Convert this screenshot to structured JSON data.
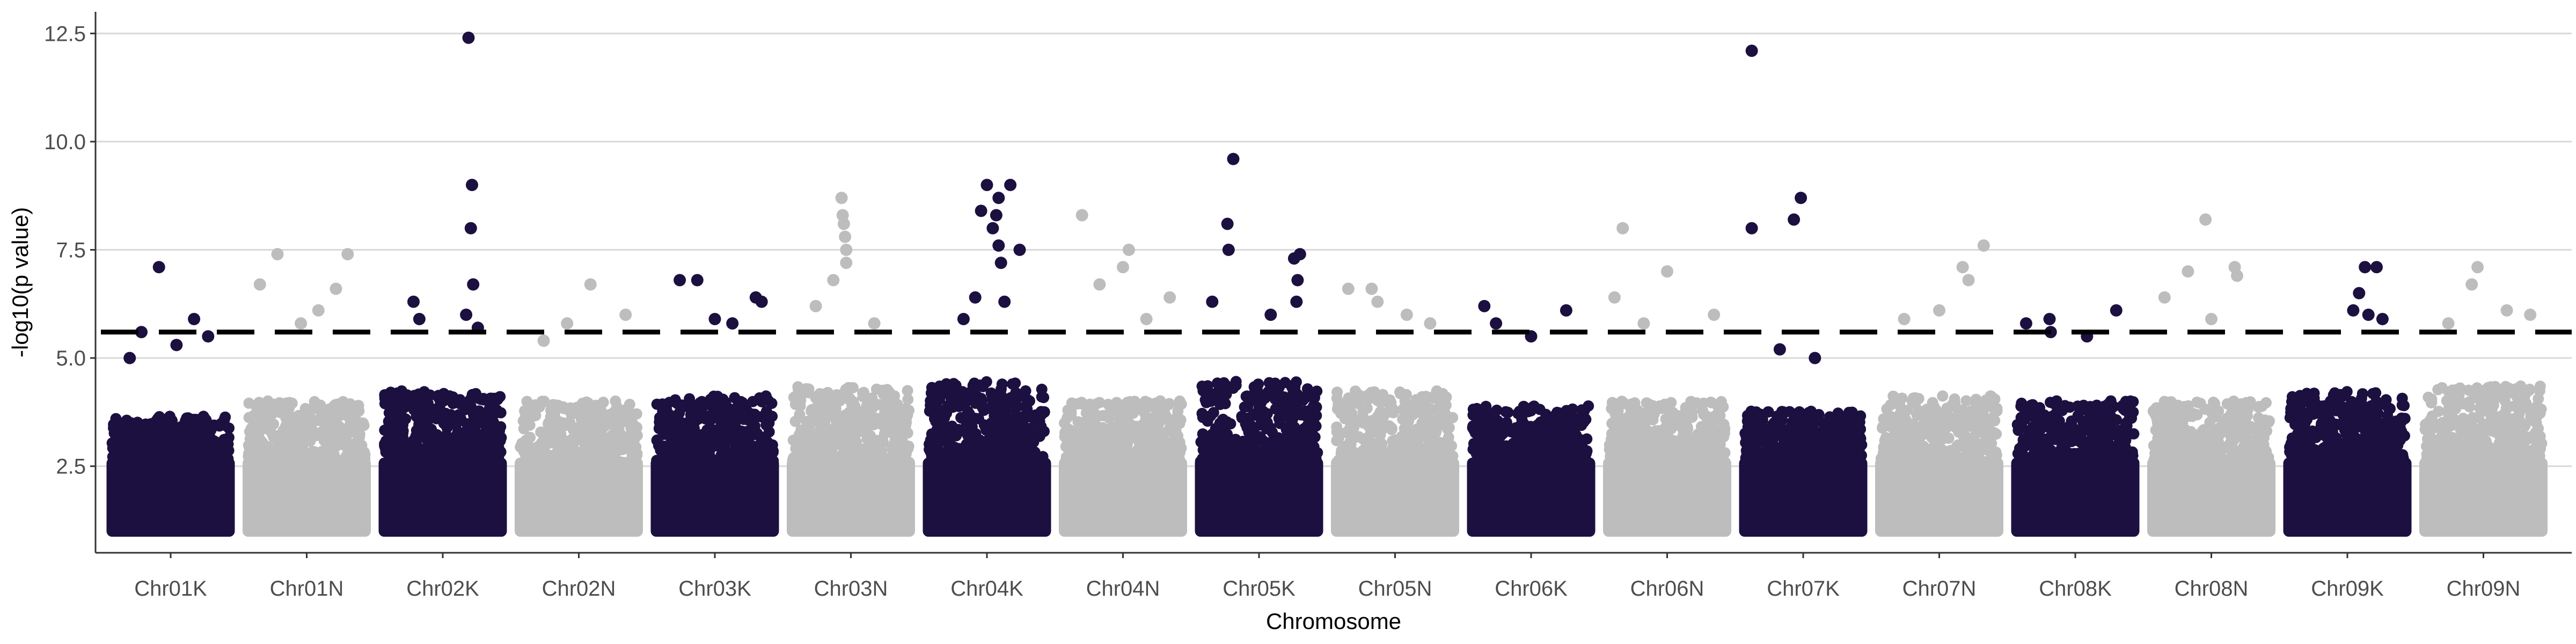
{
  "chart_data": {
    "type": "scatter",
    "subtype": "manhattan",
    "title": "",
    "xlabel": "Chromosome",
    "ylabel": "-log10(p value)",
    "ylim": [
      0.5,
      13.0
    ],
    "yticks": [
      2.5,
      5.0,
      7.5,
      10.0,
      12.5
    ],
    "grid": {
      "y": true,
      "x": false
    },
    "legend": "none",
    "threshold": 5.6,
    "colors": {
      "odd": "#1c1040",
      "even": "#bdbdbd",
      "grid": "#d9d9d9",
      "axis": "#333333",
      "threshold": "#000000"
    },
    "categories": [
      "Chr01K",
      "Chr01N",
      "Chr02K",
      "Chr02N",
      "Chr03K",
      "Chr03N",
      "Chr04K",
      "Chr04N",
      "Chr05K",
      "Chr05N",
      "Chr06K",
      "Chr06N",
      "Chr07K",
      "Chr07N",
      "Chr08K",
      "Chr08N",
      "Chr09K",
      "Chr09N"
    ],
    "series": [
      {
        "chromosome": "Chr01K",
        "base_top": 3.5,
        "points": [
          [
            0.4,
            7.1
          ],
          [
            0.25,
            5.6
          ],
          [
            0.7,
            5.9
          ],
          [
            0.55,
            5.3
          ],
          [
            0.82,
            5.5
          ],
          [
            0.15,
            5.0
          ]
        ]
      },
      {
        "chromosome": "Chr01N",
        "base_top": 3.8,
        "points": [
          [
            0.25,
            7.4
          ],
          [
            0.85,
            7.4
          ],
          [
            0.1,
            6.7
          ],
          [
            0.6,
            6.1
          ],
          [
            0.45,
            5.8
          ],
          [
            0.75,
            6.6
          ]
        ]
      },
      {
        "chromosome": "Chr02K",
        "base_top": 4.0,
        "points": [
          [
            0.72,
            12.4
          ],
          [
            0.75,
            9.0
          ],
          [
            0.74,
            8.0
          ],
          [
            0.76,
            6.7
          ],
          [
            0.7,
            6.0
          ],
          [
            0.25,
            6.3
          ],
          [
            0.8,
            5.7
          ],
          [
            0.3,
            5.9
          ]
        ]
      },
      {
        "chromosome": "Chr02N",
        "base_top": 3.8,
        "points": [
          [
            0.6,
            6.7
          ],
          [
            0.9,
            6.0
          ],
          [
            0.2,
            5.4
          ],
          [
            0.4,
            5.8
          ]
        ]
      },
      {
        "chromosome": "Chr03K",
        "base_top": 3.9,
        "points": [
          [
            0.2,
            6.8
          ],
          [
            0.35,
            6.8
          ],
          [
            0.85,
            6.4
          ],
          [
            0.9,
            6.3
          ],
          [
            0.5,
            5.9
          ],
          [
            0.65,
            5.8
          ]
        ]
      },
      {
        "chromosome": "Chr03N",
        "base_top": 4.1,
        "points": [
          [
            0.42,
            8.7
          ],
          [
            0.43,
            8.3
          ],
          [
            0.44,
            8.1
          ],
          [
            0.45,
            7.8
          ],
          [
            0.46,
            7.5
          ],
          [
            0.46,
            7.2
          ],
          [
            0.35,
            6.8
          ],
          [
            0.2,
            6.2
          ],
          [
            0.7,
            5.8
          ]
        ]
      },
      {
        "chromosome": "Chr04K",
        "base_top": 4.2,
        "points": [
          [
            0.5,
            9.0
          ],
          [
            0.7,
            9.0
          ],
          [
            0.6,
            8.7
          ],
          [
            0.45,
            8.4
          ],
          [
            0.58,
            8.3
          ],
          [
            0.55,
            8.0
          ],
          [
            0.6,
            7.6
          ],
          [
            0.78,
            7.5
          ],
          [
            0.62,
            7.2
          ],
          [
            0.4,
            6.4
          ],
          [
            0.65,
            6.3
          ],
          [
            0.3,
            5.9
          ]
        ]
      },
      {
        "chromosome": "Chr04N",
        "base_top": 3.8,
        "points": [
          [
            0.15,
            8.3
          ],
          [
            0.55,
            7.5
          ],
          [
            0.5,
            7.1
          ],
          [
            0.3,
            6.7
          ],
          [
            0.9,
            6.4
          ],
          [
            0.7,
            5.9
          ]
        ]
      },
      {
        "chromosome": "Chr05K",
        "base_top": 4.2,
        "points": [
          [
            0.28,
            9.6
          ],
          [
            0.23,
            8.1
          ],
          [
            0.24,
            7.5
          ],
          [
            0.85,
            7.4
          ],
          [
            0.8,
            7.3
          ],
          [
            0.83,
            6.8
          ],
          [
            0.82,
            6.3
          ],
          [
            0.1,
            6.3
          ],
          [
            0.6,
            6.0
          ]
        ]
      },
      {
        "chromosome": "Chr05N",
        "base_top": 4.0,
        "points": [
          [
            0.1,
            6.6
          ],
          [
            0.3,
            6.6
          ],
          [
            0.35,
            6.3
          ],
          [
            0.6,
            6.0
          ],
          [
            0.8,
            5.8
          ]
        ]
      },
      {
        "chromosome": "Chr06K",
        "base_top": 3.7,
        "points": [
          [
            0.1,
            6.2
          ],
          [
            0.2,
            5.8
          ],
          [
            0.8,
            6.1
          ],
          [
            0.5,
            5.5
          ]
        ]
      },
      {
        "chromosome": "Chr06N",
        "base_top": 3.8,
        "points": [
          [
            0.12,
            8.0
          ],
          [
            0.5,
            7.0
          ],
          [
            0.05,
            6.4
          ],
          [
            0.9,
            6.0
          ],
          [
            0.3,
            5.8
          ]
        ]
      },
      {
        "chromosome": "Chr07K",
        "base_top": 3.6,
        "points": [
          [
            0.06,
            12.1
          ],
          [
            0.06,
            8.0
          ],
          [
            0.48,
            8.7
          ],
          [
            0.42,
            8.2
          ],
          [
            0.3,
            5.2
          ],
          [
            0.6,
            5.0
          ]
        ]
      },
      {
        "chromosome": "Chr07N",
        "base_top": 3.9,
        "points": [
          [
            0.88,
            7.6
          ],
          [
            0.7,
            7.1
          ],
          [
            0.75,
            6.8
          ],
          [
            0.5,
            6.1
          ],
          [
            0.2,
            5.9
          ]
        ]
      },
      {
        "chromosome": "Chr08K",
        "base_top": 3.8,
        "points": [
          [
            0.08,
            5.8
          ],
          [
            0.28,
            5.9
          ],
          [
            0.29,
            5.6
          ],
          [
            0.85,
            6.1
          ],
          [
            0.6,
            5.5
          ]
        ]
      },
      {
        "chromosome": "Chr08N",
        "base_top": 3.8,
        "points": [
          [
            0.45,
            8.2
          ],
          [
            0.3,
            7.0
          ],
          [
            0.7,
            7.1
          ],
          [
            0.72,
            6.9
          ],
          [
            0.1,
            6.4
          ],
          [
            0.5,
            5.9
          ]
        ]
      },
      {
        "chromosome": "Chr09K",
        "base_top": 4.0,
        "points": [
          [
            0.65,
            7.1
          ],
          [
            0.75,
            7.1
          ],
          [
            0.6,
            6.5
          ],
          [
            0.55,
            6.1
          ],
          [
            0.68,
            6.0
          ],
          [
            0.8,
            5.9
          ]
        ]
      },
      {
        "chromosome": "Chr09N",
        "base_top": 4.1,
        "points": [
          [
            0.45,
            7.1
          ],
          [
            0.4,
            6.7
          ],
          [
            0.7,
            6.1
          ],
          [
            0.9,
            6.0
          ],
          [
            0.2,
            5.8
          ]
        ]
      }
    ]
  }
}
